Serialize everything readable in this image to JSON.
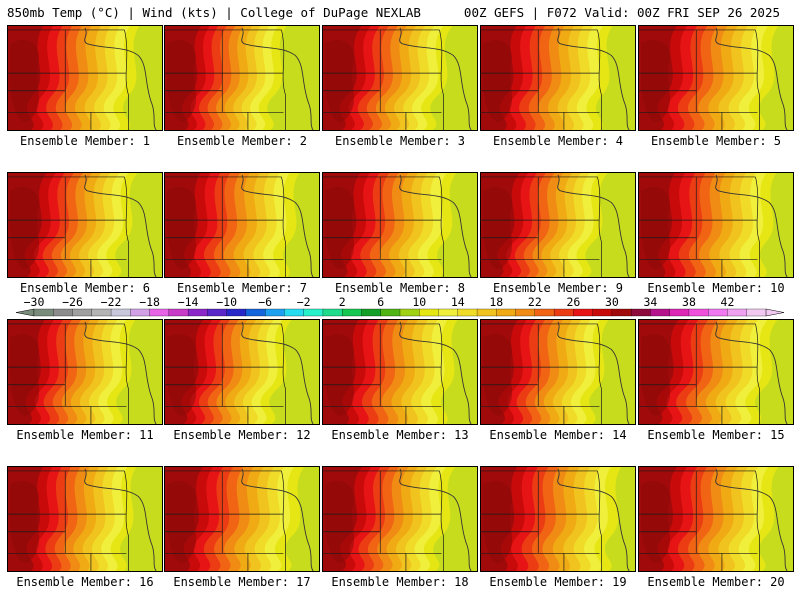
{
  "header": {
    "left": "850mb Temp (°C) | Wind (kts) | College of DuPage NEXLAB",
    "right": "00Z GEFS | F072 Valid: 00Z FRI SEP 26 2025"
  },
  "panels": [
    {
      "label": "Ensemble Member: 1",
      "hot_extent": 0.45
    },
    {
      "label": "Ensemble Member: 2",
      "hot_extent": 0.25
    },
    {
      "label": "Ensemble Member: 3",
      "hot_extent": 0.35
    },
    {
      "label": "Ensemble Member: 4",
      "hot_extent": 0.45
    },
    {
      "label": "Ensemble Member: 5",
      "hot_extent": 0.55
    },
    {
      "label": "Ensemble Member: 6",
      "hot_extent": 0.35
    },
    {
      "label": "Ensemble Member: 7",
      "hot_extent": 0.5
    },
    {
      "label": "Ensemble Member: 8",
      "hot_extent": 0.45
    },
    {
      "label": "Ensemble Member: 9",
      "hot_extent": 0.3
    },
    {
      "label": "Ensemble Member: 10",
      "hot_extent": 0.55
    },
    {
      "label": "Ensemble Member: 11",
      "hot_extent": 0.35
    },
    {
      "label": "Ensemble Member: 12",
      "hot_extent": 0.3
    },
    {
      "label": "Ensemble Member: 13",
      "hot_extent": 0.5
    },
    {
      "label": "Ensemble Member: 14",
      "hot_extent": 0.35
    },
    {
      "label": "Ensemble Member: 15",
      "hot_extent": 0.5
    },
    {
      "label": "Ensemble Member: 16",
      "hot_extent": 0.4
    },
    {
      "label": "Ensemble Member: 17",
      "hot_extent": 0.55
    },
    {
      "label": "Ensemble Member: 18",
      "hot_extent": 0.4
    },
    {
      "label": "Ensemble Member: 19",
      "hot_extent": 0.6
    },
    {
      "label": "Ensemble Member: 20",
      "hot_extent": 0.55
    }
  ],
  "colorbar": {
    "labels": [
      "-30",
      "-26",
      "-22",
      "-18",
      "-14",
      "-10",
      "-6",
      "-2",
      "2",
      "6",
      "10",
      "14",
      "18",
      "22",
      "26",
      "30",
      "34",
      "38",
      "42"
    ],
    "colors": [
      "#7a8c7a",
      "#8c8c8c",
      "#a0a0a0",
      "#b4b4b4",
      "#c8c8dc",
      "#d2a0e6",
      "#e664e6",
      "#c83cc8",
      "#8c28c8",
      "#5a28c8",
      "#2828c8",
      "#1464dc",
      "#1ea0f0",
      "#28dcf0",
      "#28f0c8",
      "#1edc8c",
      "#14c850",
      "#14a028",
      "#50b414",
      "#a0d214",
      "#e6e614",
      "#f0f03c",
      "#f0dc28",
      "#f0c31e",
      "#f0aa14",
      "#f08c14",
      "#f06414",
      "#eb3c14",
      "#e61414",
      "#c80a0a",
      "#a00a0a",
      "#8c0a3c",
      "#b4148c",
      "#dc28b4",
      "#f050dc",
      "#f078f0",
      "#f0a0f0",
      "#f0c8f0"
    ]
  },
  "map_colors": {
    "temps": [
      "#b4c83c",
      "#c8dc1e",
      "#e6e614",
      "#f0f03c",
      "#f0dc28",
      "#f0c31e",
      "#f0aa14",
      "#f08c14",
      "#f06414",
      "#eb3c14",
      "#e61414",
      "#c80a0a",
      "#a00a0a"
    ]
  }
}
